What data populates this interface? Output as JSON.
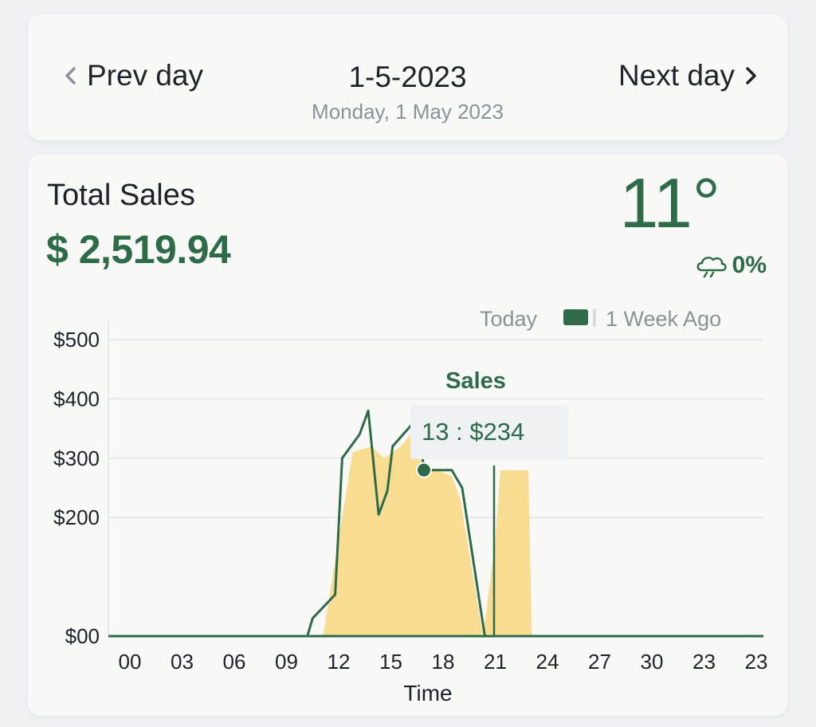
{
  "date_nav": {
    "prev_label": "Prev day",
    "next_label": "Next day",
    "date": "1-5-2023",
    "subtitle": "Monday, 1 May 2023"
  },
  "summary": {
    "title": "Total Sales",
    "total": "$ 2,519.94",
    "temperature": "11°",
    "precipitation": "0%"
  },
  "icons": {
    "prev": "chevron-left-icon",
    "next": "chevron-right-icon",
    "weather": "cloud-rain-icon"
  },
  "colors": {
    "accent": "#2e6b49",
    "fill": "#f8dc92",
    "muted": "#8a9299"
  },
  "legend": {
    "today": "Today",
    "week_ago": "1 Week Ago"
  },
  "tooltip": {
    "title": "Sales",
    "value": "13 : $234"
  },
  "chart_data": {
    "type": "line",
    "xlabel": "Time",
    "ylabel": "",
    "ylim": [
      0,
      500
    ],
    "y_ticks": [
      "$00",
      "$200",
      "$300",
      "$400",
      "$500"
    ],
    "y_tick_values": [
      0,
      200,
      300,
      400,
      500
    ],
    "x_tick_labels": [
      "00",
      "03",
      "06",
      "09",
      "12",
      "15",
      "18",
      "21",
      "24",
      "27",
      "30",
      "23",
      "23"
    ],
    "grid": true,
    "legend_position": "top-right",
    "series": [
      {
        "name": "Today",
        "style": "line",
        "x": [
          0,
          10.2,
          10.5,
          11.8,
          12.2,
          13.2,
          13.7,
          14.3,
          14.8,
          15.1,
          16.3,
          16.6,
          16.9,
          18.5,
          19.1,
          20.4
        ],
        "y": [
          0,
          0,
          30,
          70,
          300,
          340,
          380,
          205,
          245,
          320,
          360,
          360,
          280,
          280,
          250,
          0
        ]
      },
      {
        "name": "1 Week Ago",
        "style": "area",
        "x": [
          0,
          11.1,
          12.8,
          13.9,
          14.6,
          15.6,
          16.1,
          16.8,
          18.5,
          19.0,
          20.3,
          21.0,
          21.3,
          22.2,
          22.9,
          23.1,
          24.5
        ],
        "y": [
          0,
          0,
          310,
          320,
          300,
          320,
          340,
          290,
          270,
          230,
          0,
          160,
          280,
          280,
          280,
          0,
          0
        ]
      }
    ],
    "highlight": {
      "x": 16.9,
      "y": 280
    }
  }
}
